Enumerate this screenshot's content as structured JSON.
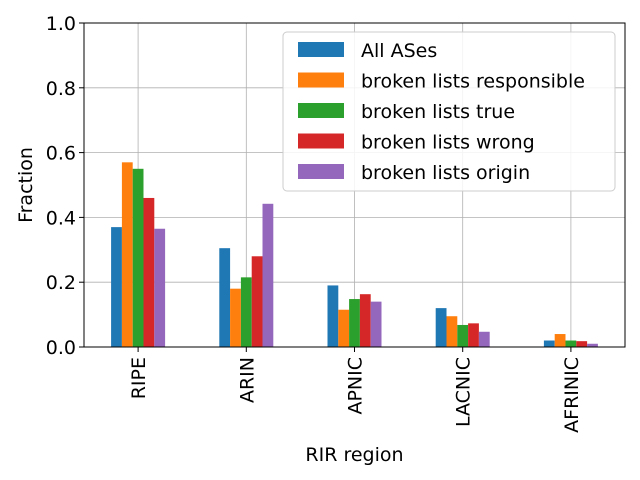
{
  "chart_data": {
    "type": "bar",
    "xlabel": "RIR region",
    "ylabel": "Fraction",
    "ylim": [
      0,
      1.0
    ],
    "yticks": [
      "0.0",
      "0.2",
      "0.4",
      "0.6",
      "0.8",
      "1.0"
    ],
    "grid": true,
    "legend_position": "top-right",
    "categories": [
      "RIPE",
      "ARIN",
      "APNIC",
      "LACNIC",
      "AFRINIC"
    ],
    "series": [
      {
        "name": "All ASes",
        "color": "#1f77b4",
        "values": [
          0.37,
          0.305,
          0.19,
          0.12,
          0.02
        ]
      },
      {
        "name": "broken lists responsible",
        "color": "#ff7f0e",
        "values": [
          0.57,
          0.18,
          0.115,
          0.095,
          0.04
        ]
      },
      {
        "name": "broken lists true",
        "color": "#2ca02c",
        "values": [
          0.55,
          0.215,
          0.148,
          0.068,
          0.02
        ]
      },
      {
        "name": "broken lists wrong",
        "color": "#d62728",
        "values": [
          0.46,
          0.28,
          0.163,
          0.073,
          0.018
        ]
      },
      {
        "name": "broken lists origin",
        "color": "#9467bd",
        "values": [
          0.365,
          0.442,
          0.14,
          0.047,
          0.01
        ]
      }
    ]
  }
}
